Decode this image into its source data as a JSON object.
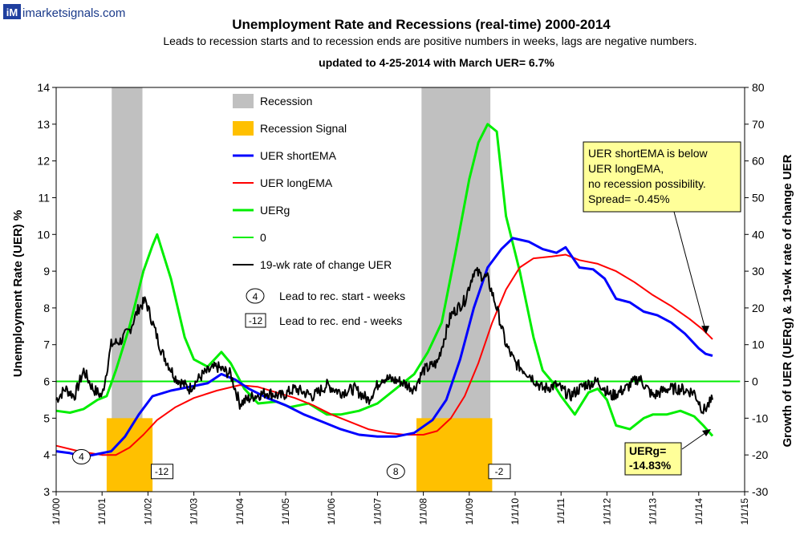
{
  "brand": {
    "logo_mark": "iM",
    "site": "imarketsignals.com"
  },
  "colors": {
    "recession": "#c0c0c0",
    "signal": "#ffc000",
    "short_ema": "#0000ff",
    "long_ema": "#ff0000",
    "uerg": "#00ee00",
    "zero": "#00ee00",
    "roc": "#000000",
    "note_bg": "#ffff99"
  },
  "chart_data": {
    "type": "line",
    "title": "Unemployment Rate and Recessions (real-time) 2000-2014",
    "subtitle": "Leads to recession starts and to recession ends are positive numbers in weeks, lags are negative numbers.",
    "updated": "updated to 4-25-2014 with March UER= 6.7%",
    "ylabel_left": "Unemployment Rate (UER) %",
    "ylabel_right": "Growth of UER (UERg) & 19-wk rate of change UER",
    "x_ticks": [
      "1/1/00",
      "1/1/01",
      "1/1/02",
      "1/1/03",
      "1/1/04",
      "1/1/05",
      "1/1/06",
      "1/1/07",
      "1/1/08",
      "1/1/09",
      "1/1/10",
      "1/1/11",
      "1/1/12",
      "1/1/13",
      "1/1/14",
      "1/1/15"
    ],
    "xlim": [
      2000,
      2015
    ],
    "ylim_left": [
      3,
      14
    ],
    "ylim_right": [
      -30,
      80
    ],
    "left_ticks": [
      3,
      4,
      5,
      6,
      7,
      8,
      9,
      10,
      11,
      12,
      13,
      14
    ],
    "right_ticks": [
      -30,
      -20,
      -10,
      0,
      10,
      20,
      30,
      40,
      50,
      60,
      70,
      80
    ],
    "recessions": [
      [
        2001.21,
        2001.88
      ],
      [
        2007.96,
        2009.46
      ]
    ],
    "recession_signals": [
      [
        2001.1,
        2002.1
      ],
      [
        2007.85,
        2009.5
      ]
    ],
    "legend": [
      {
        "label": "Recession",
        "kind": "recession"
      },
      {
        "label": "Recession Signal",
        "kind": "signal"
      },
      {
        "label": "UER shortEMA",
        "kind": "short_ema"
      },
      {
        "label": "UER longEMA",
        "kind": "long_ema"
      },
      {
        "label": "UERg",
        "kind": "uerg"
      },
      {
        "label": "0",
        "kind": "zero"
      },
      {
        "label": "19-wk rate of change UER",
        "kind": "roc"
      }
    ],
    "key_lead_start": {
      "label": "Lead to rec. start - weeks",
      "sample": "4"
    },
    "key_lead_end": {
      "label": "Lead to rec. end - weeks",
      "sample": "-12"
    },
    "lead_markers": [
      {
        "value": "4",
        "shape": "circle",
        "x": 2000.55,
        "y": 3.95
      },
      {
        "value": "-12",
        "shape": "box",
        "x": 2002.3,
        "y": 3.55
      },
      {
        "value": "8",
        "shape": "circle",
        "x": 2007.4,
        "y": 3.55
      },
      {
        "value": "-2",
        "shape": "box",
        "x": 2009.65,
        "y": 3.55
      }
    ],
    "note_spread": {
      "lines": [
        "UER shortEMA  is below",
        "UER longEMA,",
        "no recession possibility.",
        "Spread= -0.45%"
      ],
      "x": 2014.25
    },
    "note_uerg": {
      "lines": [
        "UERg=",
        "-14.83%"
      ],
      "x": 2014.35
    },
    "series": [
      {
        "name": "UER shortEMA",
        "axis": "left",
        "color": "#0000ff",
        "width": 3,
        "points": [
          [
            2000,
            4.1
          ],
          [
            2000.3,
            4.05
          ],
          [
            2000.6,
            3.95
          ],
          [
            2001.0,
            4.05
          ],
          [
            2001.2,
            4.1
          ],
          [
            2001.5,
            4.5
          ],
          [
            2001.8,
            5.1
          ],
          [
            2002.1,
            5.6
          ],
          [
            2002.5,
            5.75
          ],
          [
            2002.9,
            5.85
          ],
          [
            2003.3,
            5.95
          ],
          [
            2003.6,
            6.2
          ],
          [
            2003.9,
            6.05
          ],
          [
            2004.2,
            5.8
          ],
          [
            2004.6,
            5.55
          ],
          [
            2005.0,
            5.35
          ],
          [
            2005.4,
            5.1
          ],
          [
            2005.8,
            4.9
          ],
          [
            2006.2,
            4.7
          ],
          [
            2006.6,
            4.55
          ],
          [
            2007.0,
            4.5
          ],
          [
            2007.4,
            4.5
          ],
          [
            2007.8,
            4.6
          ],
          [
            2008.2,
            4.95
          ],
          [
            2008.5,
            5.5
          ],
          [
            2008.8,
            6.6
          ],
          [
            2009.1,
            8.0
          ],
          [
            2009.4,
            9.1
          ],
          [
            2009.7,
            9.6
          ],
          [
            2009.95,
            9.9
          ],
          [
            2010.3,
            9.8
          ],
          [
            2010.6,
            9.6
          ],
          [
            2010.9,
            9.5
          ],
          [
            2011.1,
            9.65
          ],
          [
            2011.4,
            9.1
          ],
          [
            2011.7,
            9.05
          ],
          [
            2011.95,
            8.8
          ],
          [
            2012.2,
            8.25
          ],
          [
            2012.5,
            8.15
          ],
          [
            2012.8,
            7.9
          ],
          [
            2013.1,
            7.8
          ],
          [
            2013.4,
            7.6
          ],
          [
            2013.7,
            7.3
          ],
          [
            2014.0,
            6.9
          ],
          [
            2014.15,
            6.75
          ],
          [
            2014.3,
            6.7
          ]
        ]
      },
      {
        "name": "UER longEMA",
        "axis": "left",
        "color": "#ff0000",
        "width": 2,
        "points": [
          [
            2000,
            4.25
          ],
          [
            2000.5,
            4.1
          ],
          [
            2001.0,
            4.0
          ],
          [
            2001.3,
            4.0
          ],
          [
            2001.6,
            4.2
          ],
          [
            2001.9,
            4.55
          ],
          [
            2002.2,
            4.95
          ],
          [
            2002.6,
            5.3
          ],
          [
            2003.0,
            5.55
          ],
          [
            2003.5,
            5.75
          ],
          [
            2004.0,
            5.9
          ],
          [
            2004.4,
            5.85
          ],
          [
            2004.8,
            5.7
          ],
          [
            2005.2,
            5.55
          ],
          [
            2005.6,
            5.35
          ],
          [
            2006.0,
            5.1
          ],
          [
            2006.4,
            4.9
          ],
          [
            2006.8,
            4.7
          ],
          [
            2007.2,
            4.6
          ],
          [
            2007.6,
            4.55
          ],
          [
            2008.0,
            4.55
          ],
          [
            2008.3,
            4.65
          ],
          [
            2008.6,
            5.0
          ],
          [
            2008.9,
            5.6
          ],
          [
            2009.2,
            6.5
          ],
          [
            2009.5,
            7.6
          ],
          [
            2009.8,
            8.5
          ],
          [
            2010.1,
            9.1
          ],
          [
            2010.4,
            9.35
          ],
          [
            2010.8,
            9.4
          ],
          [
            2011.1,
            9.45
          ],
          [
            2011.4,
            9.3
          ],
          [
            2011.8,
            9.2
          ],
          [
            2012.2,
            9.0
          ],
          [
            2012.6,
            8.7
          ],
          [
            2013.0,
            8.35
          ],
          [
            2013.4,
            8.05
          ],
          [
            2013.8,
            7.7
          ],
          [
            2014.1,
            7.4
          ],
          [
            2014.3,
            7.15
          ]
        ]
      },
      {
        "name": "UERg",
        "axis": "right",
        "color": "#00ee00",
        "width": 3,
        "points": [
          [
            2000,
            -8
          ],
          [
            2000.3,
            -8.5
          ],
          [
            2000.6,
            -7.5
          ],
          [
            2000.9,
            -5
          ],
          [
            2001.1,
            -4
          ],
          [
            2001.3,
            3
          ],
          [
            2001.6,
            15
          ],
          [
            2001.9,
            30
          ],
          [
            2002.1,
            37
          ],
          [
            2002.2,
            40
          ],
          [
            2002.5,
            28
          ],
          [
            2002.8,
            12
          ],
          [
            2003.0,
            6
          ],
          [
            2003.3,
            4
          ],
          [
            2003.6,
            8
          ],
          [
            2003.8,
            5
          ],
          [
            2004.1,
            -2
          ],
          [
            2004.4,
            -6
          ],
          [
            2004.8,
            -5.5
          ],
          [
            2005.1,
            -7
          ],
          [
            2005.5,
            -6
          ],
          [
            2005.9,
            -9
          ],
          [
            2006.2,
            -9
          ],
          [
            2006.6,
            -8
          ],
          [
            2007.0,
            -6
          ],
          [
            2007.4,
            -2
          ],
          [
            2007.8,
            2
          ],
          [
            2008.1,
            8
          ],
          [
            2008.4,
            16
          ],
          [
            2008.7,
            35
          ],
          [
            2009.0,
            55
          ],
          [
            2009.2,
            65
          ],
          [
            2009.4,
            70
          ],
          [
            2009.6,
            68
          ],
          [
            2009.8,
            45
          ],
          [
            2010.1,
            30
          ],
          [
            2010.4,
            12
          ],
          [
            2010.6,
            3
          ],
          [
            2010.8,
            0
          ],
          [
            2011.0,
            -4
          ],
          [
            2011.3,
            -9
          ],
          [
            2011.6,
            -3
          ],
          [
            2011.8,
            -2
          ],
          [
            2012.0,
            -5
          ],
          [
            2012.2,
            -12
          ],
          [
            2012.5,
            -13
          ],
          [
            2012.8,
            -10
          ],
          [
            2013.0,
            -9
          ],
          [
            2013.3,
            -9
          ],
          [
            2013.6,
            -8
          ],
          [
            2013.9,
            -9.5
          ],
          [
            2014.1,
            -12
          ],
          [
            2014.3,
            -14.83
          ]
        ]
      },
      {
        "name": "19-wk rate of change UER",
        "axis": "right",
        "color": "#000000",
        "width": 2,
        "jitter": true,
        "points": [
          [
            2000,
            -5
          ],
          [
            2000.2,
            -2
          ],
          [
            2000.4,
            -4
          ],
          [
            2000.6,
            3
          ],
          [
            2000.8,
            -2
          ],
          [
            2001.0,
            -4
          ],
          [
            2001.2,
            10
          ],
          [
            2001.4,
            11
          ],
          [
            2001.6,
            14
          ],
          [
            2001.8,
            20
          ],
          [
            2001.95,
            22
          ],
          [
            2002.05,
            18
          ],
          [
            2002.3,
            8
          ],
          [
            2002.6,
            1
          ],
          [
            2002.9,
            -2
          ],
          [
            2003.2,
            2
          ],
          [
            2003.5,
            4
          ],
          [
            2003.8,
            2
          ],
          [
            2004.0,
            -6
          ],
          [
            2004.3,
            -4
          ],
          [
            2004.6,
            -3
          ],
          [
            2004.9,
            -4
          ],
          [
            2005.2,
            -2
          ],
          [
            2005.6,
            -4
          ],
          [
            2005.9,
            -1
          ],
          [
            2006.2,
            -3
          ],
          [
            2006.5,
            -2
          ],
          [
            2006.8,
            -5
          ],
          [
            2007.1,
            1
          ],
          [
            2007.5,
            0
          ],
          [
            2007.8,
            -2
          ],
          [
            2008.0,
            3
          ],
          [
            2008.3,
            5
          ],
          [
            2008.6,
            18
          ],
          [
            2008.9,
            22
          ],
          [
            2009.1,
            30
          ],
          [
            2009.4,
            28
          ],
          [
            2009.6,
            20
          ],
          [
            2009.8,
            10
          ],
          [
            2010.0,
            5
          ],
          [
            2010.3,
            2
          ],
          [
            2010.6,
            -2
          ],
          [
            2010.9,
            -1
          ],
          [
            2011.2,
            -4
          ],
          [
            2011.5,
            -1
          ],
          [
            2011.8,
            0
          ],
          [
            2012.1,
            -4
          ],
          [
            2012.4,
            -2
          ],
          [
            2012.7,
            1
          ],
          [
            2013.0,
            -4
          ],
          [
            2013.3,
            -2
          ],
          [
            2013.6,
            -2
          ],
          [
            2013.9,
            -3
          ],
          [
            2014.1,
            -8
          ],
          [
            2014.3,
            -5
          ]
        ]
      },
      {
        "name": "0",
        "axis": "right",
        "color": "#00ee00",
        "width": 2,
        "points": [
          [
            2000,
            0
          ],
          [
            2014.9,
            0
          ]
        ]
      }
    ]
  }
}
